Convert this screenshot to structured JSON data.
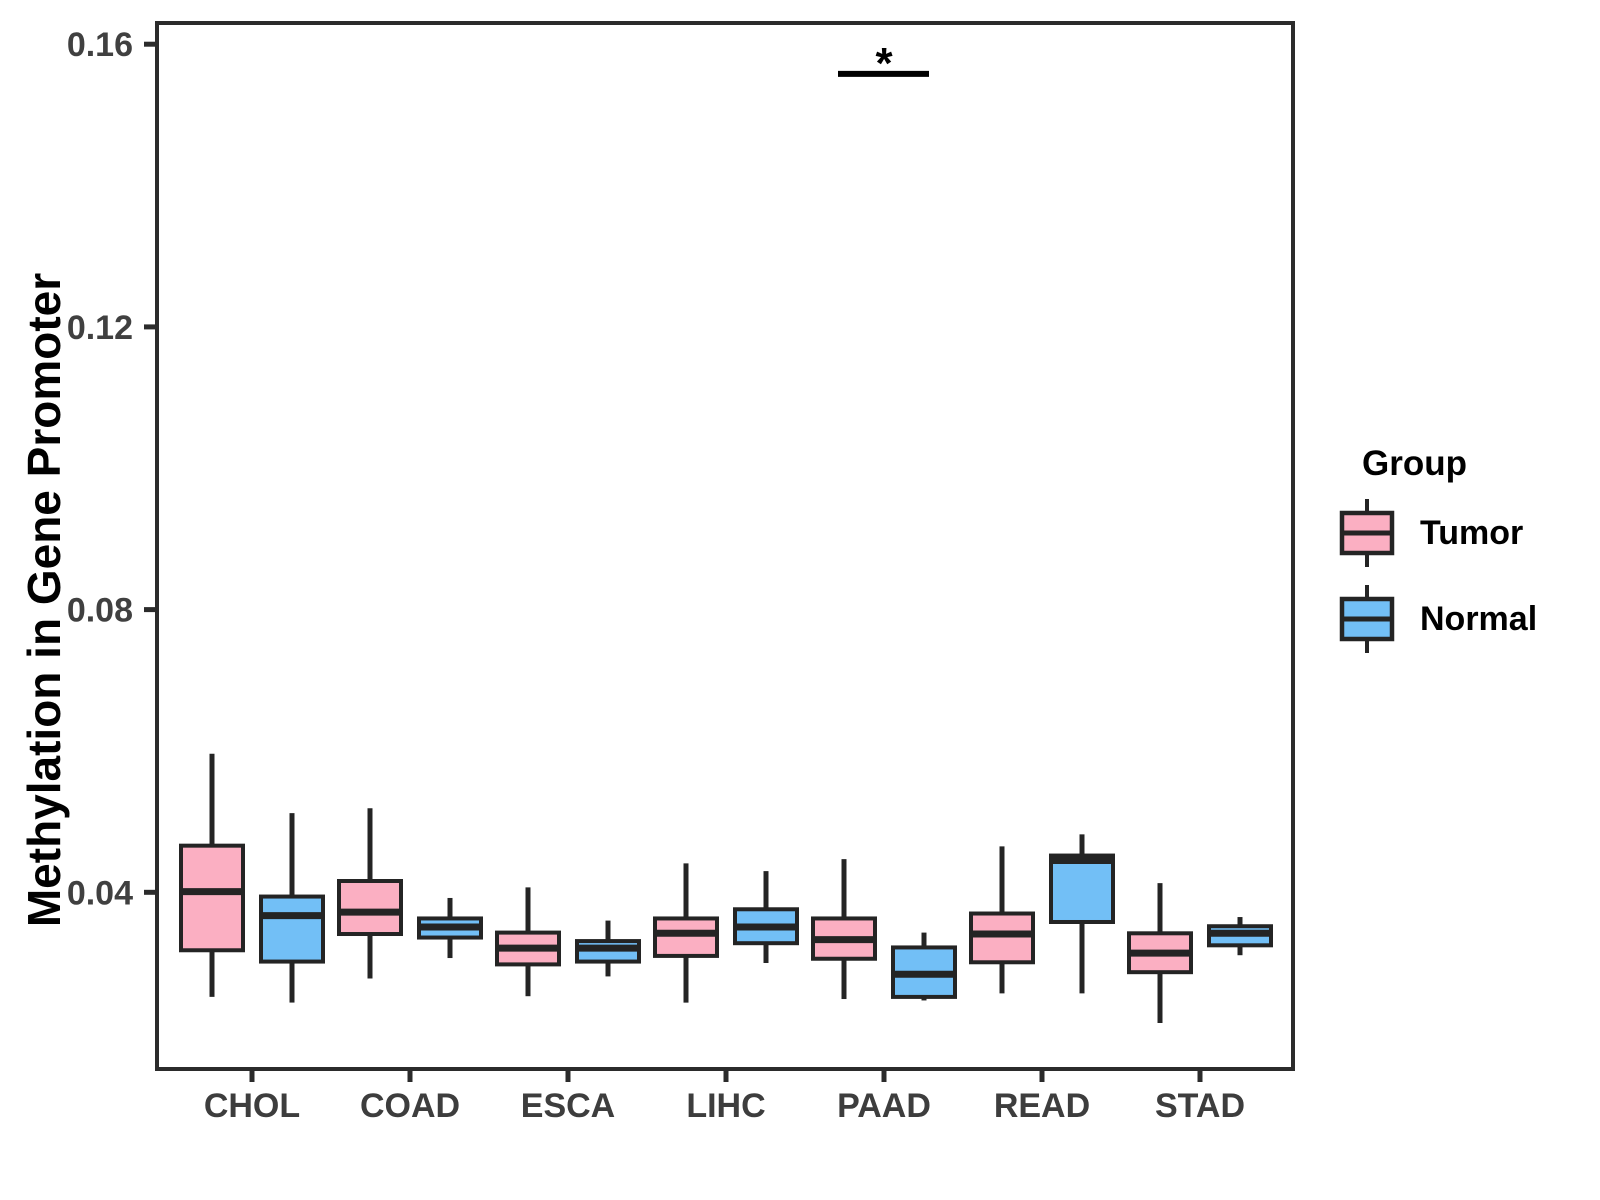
{
  "figure": {
    "y_axis_title": "Methylation in Gene Promoter",
    "legend": {
      "title": "Group",
      "entries": [
        {
          "label": "Tumor",
          "color": "#FBAFC2"
        },
        {
          "label": "Normal",
          "color": "#72BFF6"
        }
      ]
    },
    "colors": {
      "box_border": "#242424",
      "panel_border": "#2b2b2b",
      "annotation": "#000000"
    }
  },
  "chart_data": {
    "type": "boxplot",
    "title": "",
    "xlabel": "",
    "ylabel": "Methylation in Gene Promoter",
    "categories": [
      "CHOL",
      "COAD",
      "ESCA",
      "LIHC",
      "PAAD",
      "READ",
      "STAD"
    ],
    "groups": [
      "Tumor",
      "Normal"
    ],
    "ylim": [
      0.015,
      0.163
    ],
    "y_ticks": [
      0.04,
      0.08,
      0.12,
      0.16
    ],
    "y_tick_labels": [
      "0.04",
      "0.08",
      "0.12",
      "0.16"
    ],
    "grid": "off",
    "legend_position": "right",
    "series": [
      {
        "name": "Tumor",
        "color": "#FBAFC2",
        "boxes": [
          {
            "category": "CHOL",
            "whisker_low": 0.0252,
            "q1": 0.0318,
            "median": 0.0401,
            "q3": 0.0466,
            "whisker_high": 0.0596
          },
          {
            "category": "COAD",
            "whisker_low": 0.0278,
            "q1": 0.0341,
            "median": 0.0372,
            "q3": 0.0416,
            "whisker_high": 0.0519
          },
          {
            "category": "ESCA",
            "whisker_low": 0.0253,
            "q1": 0.0298,
            "median": 0.0321,
            "q3": 0.0343,
            "whisker_high": 0.0407
          },
          {
            "category": "LIHC",
            "whisker_low": 0.0244,
            "q1": 0.031,
            "median": 0.0342,
            "q3": 0.0363,
            "whisker_high": 0.0441
          },
          {
            "category": "PAAD",
            "whisker_low": 0.0249,
            "q1": 0.0306,
            "median": 0.0333,
            "q3": 0.0363,
            "whisker_high": 0.0447
          },
          {
            "category": "READ",
            "whisker_low": 0.0257,
            "q1": 0.0301,
            "median": 0.0341,
            "q3": 0.037,
            "whisker_high": 0.0465
          },
          {
            "category": "STAD",
            "whisker_low": 0.0215,
            "q1": 0.0287,
            "median": 0.0314,
            "q3": 0.0342,
            "whisker_high": 0.0413
          }
        ]
      },
      {
        "name": "Normal",
        "color": "#72BFF6",
        "boxes": [
          {
            "category": "CHOL",
            "whisker_low": 0.0244,
            "q1": 0.0302,
            "median": 0.0367,
            "q3": 0.0394,
            "whisker_high": 0.0512
          },
          {
            "category": "COAD",
            "whisker_low": 0.0307,
            "q1": 0.0336,
            "median": 0.0351,
            "q3": 0.0363,
            "whisker_high": 0.0392
          },
          {
            "category": "ESCA",
            "whisker_low": 0.0281,
            "q1": 0.0302,
            "median": 0.0321,
            "q3": 0.0331,
            "whisker_high": 0.036
          },
          {
            "category": "LIHC",
            "whisker_low": 0.03,
            "q1": 0.0328,
            "median": 0.0351,
            "q3": 0.0376,
            "whisker_high": 0.043
          },
          {
            "category": "PAAD",
            "whisker_low": 0.0247,
            "q1": 0.0252,
            "median": 0.0284,
            "q3": 0.0322,
            "whisker_high": 0.0343
          },
          {
            "category": "READ",
            "whisker_low": 0.0257,
            "q1": 0.0358,
            "median": 0.0445,
            "q3": 0.0452,
            "whisker_high": 0.0482
          },
          {
            "category": "STAD",
            "whisker_low": 0.0311,
            "q1": 0.0325,
            "median": 0.0342,
            "q3": 0.0352,
            "whisker_high": 0.0365
          }
        ]
      }
    ],
    "annotation": {
      "label": "*",
      "category": "PAAD",
      "bar_value": 0.1558,
      "meaning": "significance between Tumor and Normal at PAAD"
    }
  }
}
